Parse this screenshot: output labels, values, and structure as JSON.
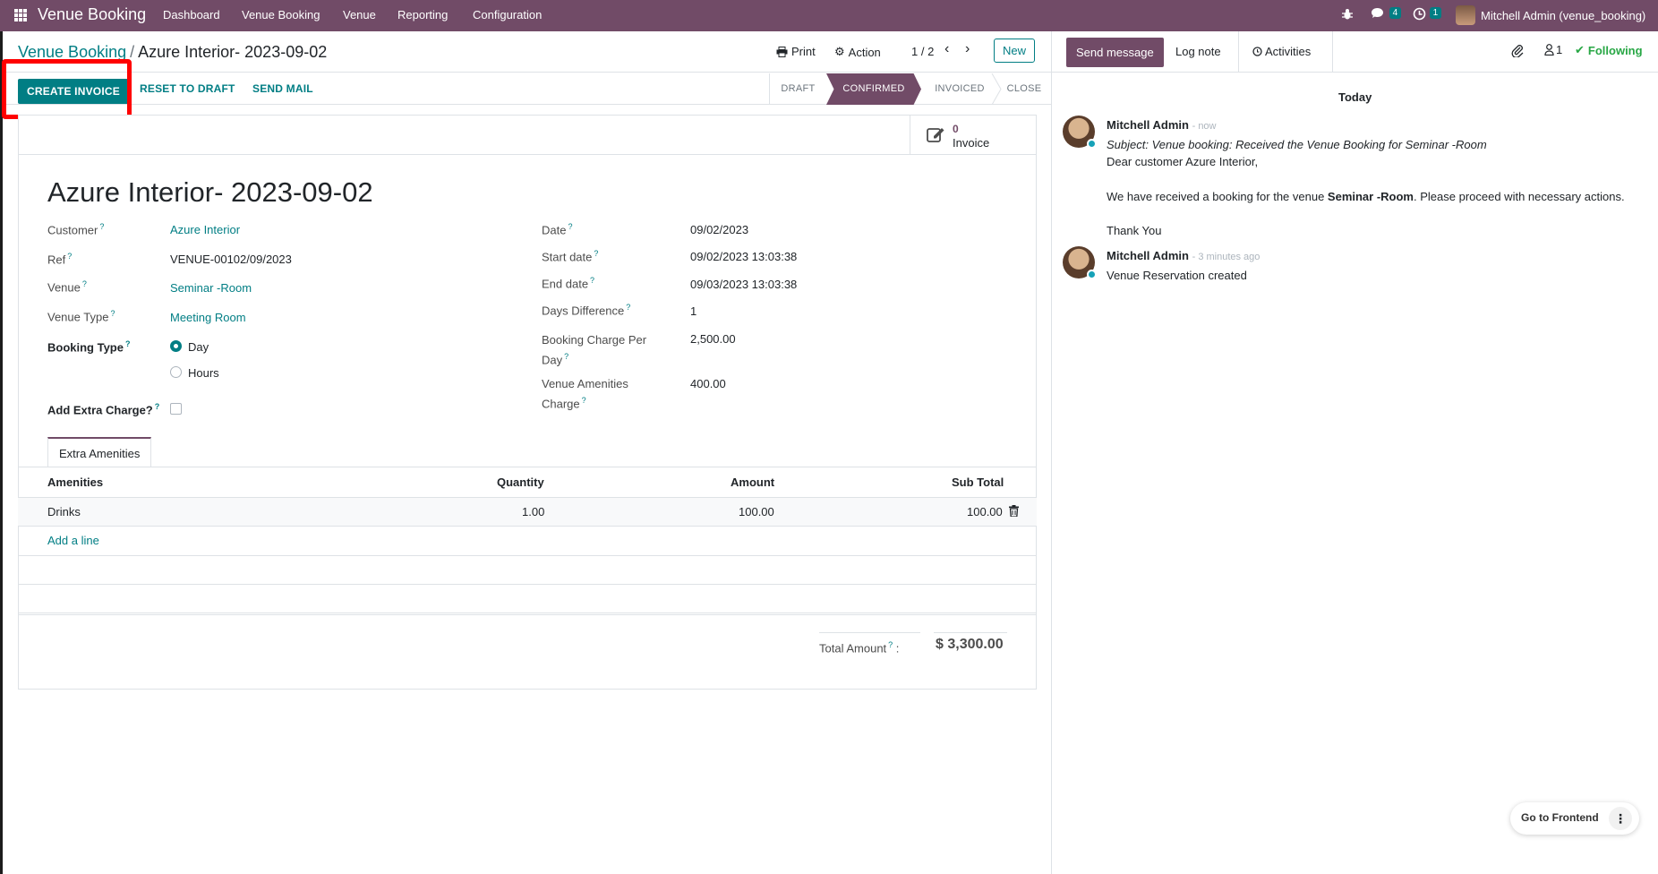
{
  "navbar": {
    "brand": "Venue Booking",
    "menu": [
      "Dashboard",
      "Venue Booking",
      "Venue",
      "Reporting",
      "Configuration"
    ],
    "messages_count": "4",
    "activities_count": "1",
    "user": "Mitchell Admin (venue_booking)"
  },
  "breadcrumb": {
    "parent": "Venue Booking",
    "separator": "/",
    "current": "Azure Interior- 2023-09-02"
  },
  "control": {
    "print": "Print",
    "action": "Action",
    "pager": "1 / 2",
    "new": "New"
  },
  "statusbar": {
    "buttons": [
      "CREATE INVOICE",
      "RESET TO DRAFT",
      "SEND MAIL"
    ],
    "stages": [
      "DRAFT",
      "CONFIRMED",
      "INVOICED",
      "CLOSE"
    ],
    "active_stage": "CONFIRMED"
  },
  "smart_button": {
    "count": "0",
    "label": "Invoice"
  },
  "record": {
    "title": "Azure Interior- 2023-09-02",
    "help": "?",
    "left": {
      "customer_label": "Customer",
      "customer": "Azure Interior",
      "ref_label": "Ref",
      "ref": "VENUE-00102/09/2023",
      "venue_label": "Venue",
      "venue": "Seminar -Room",
      "venue_type_label": "Venue Type",
      "venue_type": "Meeting Room",
      "booking_type_label": "Booking Type",
      "booking_type_options": [
        "Day",
        "Hours"
      ],
      "booking_type_selected": "Day",
      "extra_charge_label": "Add Extra Charge?"
    },
    "right": {
      "date_label": "Date",
      "date": "09/02/2023",
      "start_label": "Start date",
      "start": "09/02/2023 13:03:38",
      "end_label": "End date",
      "end": "09/03/2023 13:03:38",
      "days_label": "Days Difference",
      "days": "1",
      "charge_label_1": "Booking Charge Per",
      "charge_label_2": "Day",
      "charge": "2,500.00",
      "amenities_label_1": "Venue Amenities",
      "amenities_label_2": "Charge",
      "amenities": "400.00"
    }
  },
  "tabs": {
    "extra_amenities": "Extra Amenities"
  },
  "table": {
    "headers": [
      "Amenities",
      "Quantity",
      "Amount",
      "Sub Total"
    ],
    "rows": [
      {
        "amenity": "Drinks",
        "quantity": "1.00",
        "amount": "100.00",
        "subtotal": "100.00"
      }
    ],
    "add_line": "Add a line"
  },
  "total": {
    "label": "Total Amount",
    "suffix": ":",
    "value": "$ 3,300.00"
  },
  "chatter": {
    "send_message": "Send message",
    "log_note": "Log note",
    "activities": "Activities",
    "followers": "1",
    "following": "Following",
    "date_separator": "Today",
    "messages": [
      {
        "author": "Mitchell Admin",
        "time": "- now",
        "subject": "Subject: Venue booking: Received the Venue Booking for Seminar -Room",
        "greeting": "Dear customer Azure Interior,",
        "body_pre": "We have received a booking for the venue ",
        "body_bold": "Seminar -Room",
        "body_post": ". Please proceed with necessary actions.",
        "sign_off": "Thank You"
      },
      {
        "author": "Mitchell Admin",
        "time": "- 3 minutes ago",
        "body": "Venue Reservation created"
      }
    ]
  },
  "frontend": {
    "label": "Go to Frontend"
  },
  "colors": {
    "brand": "#714b67",
    "accent": "#017e84",
    "highlight": "#ff0000"
  }
}
